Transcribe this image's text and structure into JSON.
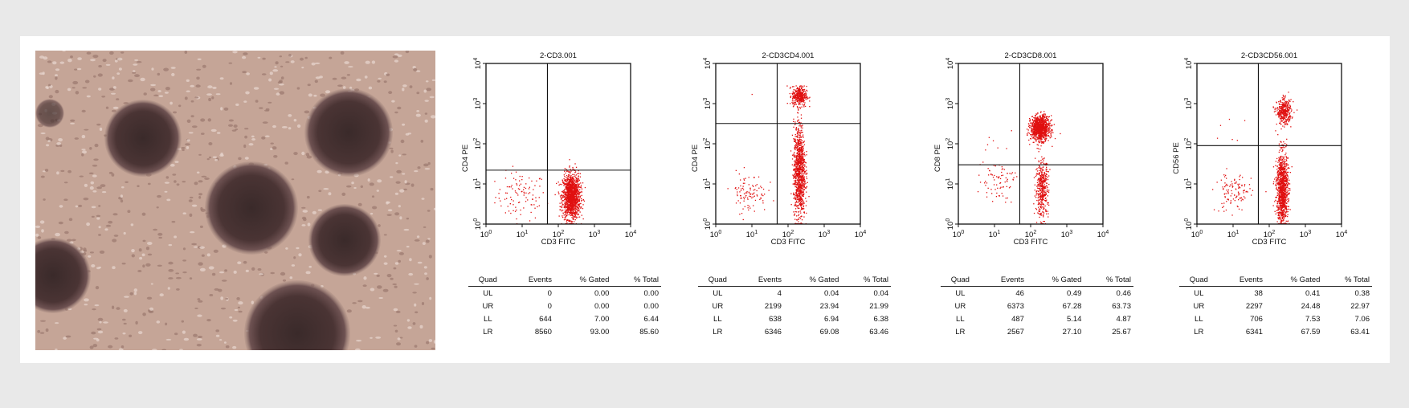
{
  "micro_image": {
    "alt": ""
  },
  "chart_data": [
    {
      "type": "scatter",
      "title": "2-CD3.001",
      "xlabel": "CD3 FITC",
      "ylabel": "CD4 PE",
      "xscale": "log",
      "yscale": "log",
      "xlim": [
        1,
        10000
      ],
      "ylim": [
        1,
        10000
      ],
      "xticks": [
        "10^0",
        "10^1",
        "10^2",
        "10^3",
        "10^4"
      ],
      "yticks": [
        "10^0",
        "10^1",
        "10^2",
        "10^3",
        "10^4"
      ],
      "quadrant_gate": {
        "x": 50,
        "y": 22
      },
      "point_color": "#e01010",
      "table": {
        "headers": [
          "Quad",
          "Events",
          "% Gated",
          "% Total"
        ],
        "rows": [
          [
            "UL",
            "0",
            "0.00",
            "0.00"
          ],
          [
            "UR",
            "0",
            "0.00",
            "0.00"
          ],
          [
            "LL",
            "644",
            "7.00",
            "6.44"
          ],
          [
            "LR",
            "8560",
            "93.00",
            "85.60"
          ]
        ]
      }
    },
    {
      "type": "scatter",
      "title": "2-CD3CD4.001",
      "xlabel": "CD3 FITC",
      "ylabel": "CD4 PE",
      "xscale": "log",
      "yscale": "log",
      "xlim": [
        1,
        10000
      ],
      "ylim": [
        1,
        10000
      ],
      "xticks": [
        "10^0",
        "10^1",
        "10^2",
        "10^3",
        "10^4"
      ],
      "yticks": [
        "10^0",
        "10^1",
        "10^2",
        "10^3",
        "10^4"
      ],
      "quadrant_gate": {
        "x": 50,
        "y": 320
      },
      "point_color": "#e01010",
      "table": {
        "headers": [
          "Quad",
          "Events",
          "% Gated",
          "% Total"
        ],
        "rows": [
          [
            "UL",
            "4",
            "0.04",
            "0.04"
          ],
          [
            "UR",
            "2199",
            "23.94",
            "21.99"
          ],
          [
            "LL",
            "638",
            "6.94",
            "6.38"
          ],
          [
            "LR",
            "6346",
            "69.08",
            "63.46"
          ]
        ]
      }
    },
    {
      "type": "scatter",
      "title": "2-CD3CD8.001",
      "xlabel": "CD3 FITC",
      "ylabel": "CD8 PE",
      "xscale": "log",
      "yscale": "log",
      "xlim": [
        1,
        10000
      ],
      "ylim": [
        1,
        10000
      ],
      "xticks": [
        "10^0",
        "10^1",
        "10^2",
        "10^3",
        "10^4"
      ],
      "yticks": [
        "10^0",
        "10^1",
        "10^2",
        "10^3",
        "10^4"
      ],
      "quadrant_gate": {
        "x": 50,
        "y": 30
      },
      "point_color": "#e01010",
      "table": {
        "headers": [
          "Quad",
          "Events",
          "% Gated",
          "% Total"
        ],
        "rows": [
          [
            "UL",
            "46",
            "0.49",
            "0.46"
          ],
          [
            "UR",
            "6373",
            "67.28",
            "63.73"
          ],
          [
            "LL",
            "487",
            "5.14",
            "4.87"
          ],
          [
            "LR",
            "2567",
            "27.10",
            "25.67"
          ]
        ]
      }
    },
    {
      "type": "scatter",
      "title": "2-CD3CD56.001",
      "xlabel": "CD3 FITC",
      "ylabel": "CD56 PE",
      "xscale": "log",
      "yscale": "log",
      "xlim": [
        1,
        10000
      ],
      "ylim": [
        1,
        10000
      ],
      "xticks": [
        "10^0",
        "10^1",
        "10^2",
        "10^3",
        "10^4"
      ],
      "yticks": [
        "10^0",
        "10^1",
        "10^2",
        "10^3",
        "10^4"
      ],
      "quadrant_gate": {
        "x": 50,
        "y": 90
      },
      "point_color": "#e01010",
      "table": {
        "headers": [
          "Quad",
          "Events",
          "% Gated",
          "% Total"
        ],
        "rows": [
          [
            "UL",
            "38",
            "0.41",
            "0.38"
          ],
          [
            "UR",
            "2297",
            "24.48",
            "22.97"
          ],
          [
            "LL",
            "706",
            "7.53",
            "7.06"
          ],
          [
            "LR",
            "6341",
            "67.59",
            "63.41"
          ]
        ]
      }
    }
  ]
}
